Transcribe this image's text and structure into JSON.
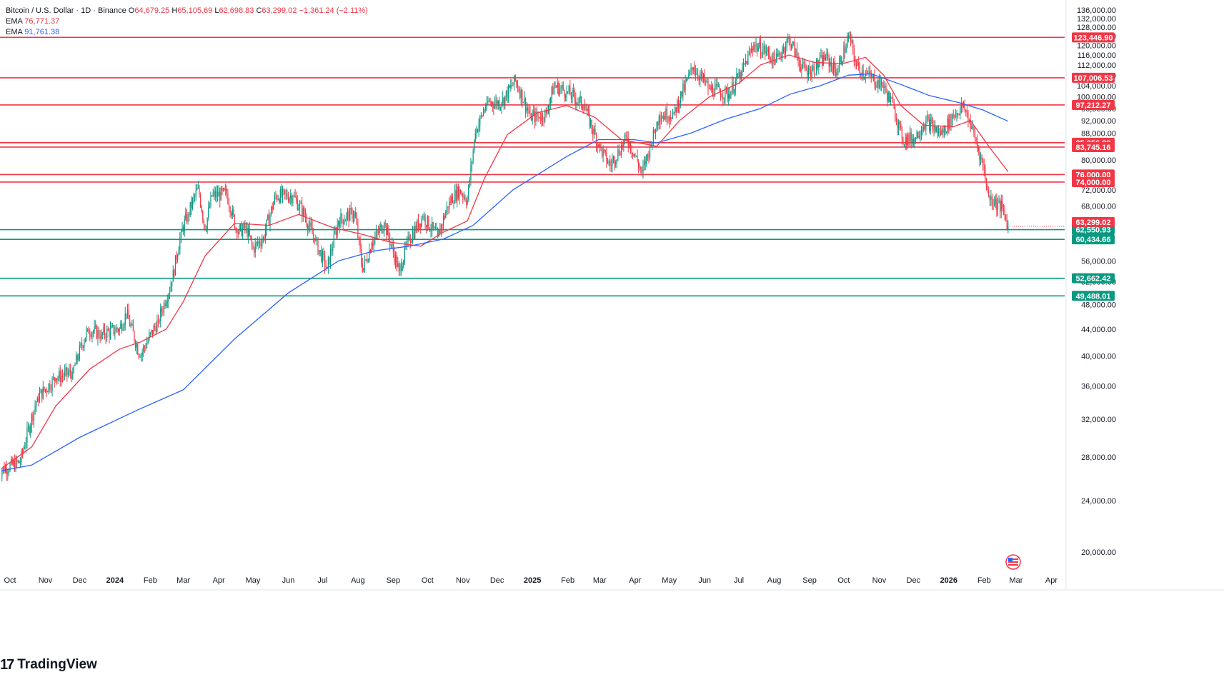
{
  "legend": {
    "symbol": "Bitcoin / U.S. Dollar · 1D · Binance",
    "open_label": "O",
    "open": "64,679.25",
    "high_label": "H",
    "high": "65,105.69",
    "low_label": "L",
    "low": "62,698.83",
    "close_label": "C",
    "close": "63,299.02",
    "change": "−1,361.24 (−2.11%)",
    "ema1_label": "EMA",
    "ema1_value": "76,771.37",
    "ema2_label": "EMA",
    "ema2_value": "91,761.38"
  },
  "brand": {
    "mark": "17",
    "name": "TradingView"
  },
  "colors": {
    "up": "#089981",
    "down": "#f23645",
    "ema_fast": "#f23645",
    "ema_slow": "#2962ff",
    "resistance": "#f23645",
    "support": "#089981",
    "grid": "#f0f3fa",
    "axis_text": "#131722"
  },
  "chart_data": {
    "type": "line",
    "title": "Bitcoin / U.S. Dollar · 1D · Binance",
    "y_scale": "log",
    "ylim": [
      17000,
      138000
    ],
    "y_ticks": [
      20000,
      24000,
      28000,
      32000,
      36000,
      40000,
      44000,
      48000,
      52000,
      56000,
      68000,
      72000,
      80000,
      88000,
      92000,
      96000,
      100000,
      104000,
      108000,
      112000,
      116000,
      120000,
      124000,
      128000,
      132000,
      136000
    ],
    "y_tick_labels": [
      "20,000.00",
      "24,000.00",
      "28,000.00",
      "32,000.00",
      "36,000.00",
      "40,000.00",
      "44,000.00",
      "48,000.00",
      "52,000.00",
      "56,000.00",
      "68,000.00",
      "72,000.00",
      "80,000.00",
      "88,000.00",
      "92,000.00",
      "96,000.00",
      "100,000.00",
      "104,000.00",
      "108,000.00",
      "112,000.00",
      "116,000.00",
      "120,000.00",
      "124,000.00",
      "128,000.00",
      "132,000.00",
      "136,000.00"
    ],
    "x_ticks": [
      {
        "label": "Oct",
        "date": "2023-10-01",
        "bold": false
      },
      {
        "label": "Nov",
        "date": "2023-11-01",
        "bold": false
      },
      {
        "label": "Dec",
        "date": "2023-12-01",
        "bold": false
      },
      {
        "label": "2024",
        "date": "2024-01-01",
        "bold": true
      },
      {
        "label": "Feb",
        "date": "2024-02-01",
        "bold": false
      },
      {
        "label": "Mar",
        "date": "2024-03-01",
        "bold": false
      },
      {
        "label": "Apr",
        "date": "2024-04-01",
        "bold": false
      },
      {
        "label": "May",
        "date": "2024-05-01",
        "bold": false
      },
      {
        "label": "Jun",
        "date": "2024-06-01",
        "bold": false
      },
      {
        "label": "Jul",
        "date": "2024-07-01",
        "bold": false
      },
      {
        "label": "Aug",
        "date": "2024-08-01",
        "bold": false
      },
      {
        "label": "Sep",
        "date": "2024-09-01",
        "bold": false
      },
      {
        "label": "Oct",
        "date": "2024-10-01",
        "bold": false
      },
      {
        "label": "Nov",
        "date": "2024-11-01",
        "bold": false
      },
      {
        "label": "Dec",
        "date": "2024-12-01",
        "bold": false
      },
      {
        "label": "2025",
        "date": "2025-01-01",
        "bold": true
      },
      {
        "label": "Feb",
        "date": "2025-02-01",
        "bold": false
      },
      {
        "label": "Mar",
        "date": "2025-03-01",
        "bold": false
      },
      {
        "label": "Apr",
        "date": "2025-04-01",
        "bold": false
      },
      {
        "label": "May",
        "date": "2025-05-01",
        "bold": false
      },
      {
        "label": "Jun",
        "date": "2025-06-01",
        "bold": false
      },
      {
        "label": "Jul",
        "date": "2025-07-01",
        "bold": false
      },
      {
        "label": "Aug",
        "date": "2025-08-01",
        "bold": false
      },
      {
        "label": "Sep",
        "date": "2025-09-01",
        "bold": false
      },
      {
        "label": "Oct",
        "date": "2025-10-01",
        "bold": false
      },
      {
        "label": "Nov",
        "date": "2025-11-01",
        "bold": false
      },
      {
        "label": "Dec",
        "date": "2025-12-01",
        "bold": false
      },
      {
        "label": "2026",
        "date": "2026-01-01",
        "bold": true
      },
      {
        "label": "Feb",
        "date": "2026-02-01",
        "bold": false
      },
      {
        "label": "Mar",
        "date": "2026-03-01",
        "bold": false
      },
      {
        "label": "Apr",
        "date": "2026-04-01",
        "bold": false
      }
    ],
    "price_series": {
      "dates": [
        "2023-09-20",
        "2023-10-10",
        "2023-10-25",
        "2023-11-10",
        "2023-11-25",
        "2023-12-08",
        "2023-12-20",
        "2024-01-05",
        "2024-01-11",
        "2024-01-23",
        "2024-02-08",
        "2024-02-20",
        "2024-02-28",
        "2024-03-05",
        "2024-03-14",
        "2024-03-20",
        "2024-03-26",
        "2024-04-08",
        "2024-04-17",
        "2024-04-25",
        "2024-05-01",
        "2024-05-10",
        "2024-05-21",
        "2024-06-05",
        "2024-06-15",
        "2024-06-24",
        "2024-07-05",
        "2024-07-15",
        "2024-07-29",
        "2024-08-05",
        "2024-08-13",
        "2024-08-24",
        "2024-09-06",
        "2024-09-15",
        "2024-09-27",
        "2024-10-10",
        "2024-10-20",
        "2024-10-29",
        "2024-11-05",
        "2024-11-12",
        "2024-11-22",
        "2024-12-05",
        "2024-12-17",
        "2024-12-30",
        "2025-01-07",
        "2025-01-13",
        "2025-01-20",
        "2025-01-31",
        "2025-02-15",
        "2025-02-28",
        "2025-03-10",
        "2025-03-25",
        "2025-04-07",
        "2025-04-15",
        "2025-04-22",
        "2025-05-05",
        "2025-05-22",
        "2025-06-05",
        "2025-06-22",
        "2025-07-03",
        "2025-07-14",
        "2025-07-25",
        "2025-08-02",
        "2025-08-14",
        "2025-08-25",
        "2025-09-01",
        "2025-09-15",
        "2025-09-25",
        "2025-10-06",
        "2025-10-11",
        "2025-10-20",
        "2025-11-04",
        "2025-11-14",
        "2025-11-21",
        "2025-12-02",
        "2025-12-12",
        "2025-12-25",
        "2026-01-05",
        "2026-01-14",
        "2026-01-21",
        "2026-01-31",
        "2026-02-05",
        "2026-02-10",
        "2026-02-17",
        "2026-02-22"
      ],
      "close": [
        26600,
        27500,
        34500,
        37000,
        37800,
        44000,
        43200,
        44100,
        46500,
        40000,
        45300,
        52000,
        62000,
        66000,
        72500,
        62500,
        70500,
        71000,
        62000,
        63000,
        58500,
        60800,
        70500,
        70500,
        66000,
        60200,
        54500,
        64500,
        66500,
        54000,
        59500,
        64000,
        54000,
        60500,
        65500,
        61000,
        69000,
        72000,
        69500,
        88000,
        98000,
        98000,
        106000,
        93500,
        93000,
        94500,
        104000,
        102000,
        97000,
        84000,
        78500,
        86500,
        76500,
        84500,
        93500,
        94500,
        111000,
        103000,
        101000,
        109000,
        120000,
        117500,
        113000,
        123000,
        111000,
        109000,
        115000,
        109000,
        124500,
        112000,
        108500,
        104000,
        96000,
        86000,
        86500,
        92000,
        87500,
        93500,
        97000,
        89800,
        78500,
        70500,
        69000,
        67500,
        63299
      ]
    },
    "series": [
      {
        "name": "EMA",
        "value": 76771.37,
        "color": "#f23645",
        "dates": [
          "2023-09-20",
          "2023-10-20",
          "2023-11-10",
          "2023-12-10",
          "2024-01-05",
          "2024-01-23",
          "2024-02-15",
          "2024-03-01",
          "2024-03-20",
          "2024-04-15",
          "2024-05-15",
          "2024-06-10",
          "2024-07-10",
          "2024-08-05",
          "2024-08-30",
          "2024-09-25",
          "2024-10-15",
          "2024-11-05",
          "2024-11-20",
          "2024-12-10",
          "2025-01-05",
          "2025-01-31",
          "2025-02-25",
          "2025-03-20",
          "2025-04-20",
          "2025-05-10",
          "2025-06-05",
          "2025-07-01",
          "2025-07-20",
          "2025-08-14",
          "2025-09-05",
          "2025-09-30",
          "2025-10-20",
          "2025-11-05",
          "2025-11-20",
          "2025-12-10",
          "2026-01-05",
          "2026-01-20",
          "2026-02-05",
          "2026-02-22"
        ],
        "values": [
          26600,
          29000,
          33500,
          38200,
          41000,
          42000,
          44000,
          48500,
          57000,
          64000,
          63500,
          66000,
          63000,
          61500,
          59800,
          59000,
          62000,
          64500,
          75000,
          87500,
          94500,
          97000,
          93000,
          86000,
          84000,
          92000,
          100000,
          105000,
          112000,
          116000,
          113000,
          112500,
          115000,
          108000,
          97000,
          90500,
          90000,
          92000,
          84000,
          76771
        ]
      },
      {
        "name": "EMA",
        "value": 91761.38,
        "color": "#2962ff",
        "dates": [
          "2023-09-20",
          "2023-10-20",
          "2023-12-01",
          "2024-01-20",
          "2024-03-01",
          "2024-04-15",
          "2024-06-01",
          "2024-07-15",
          "2024-08-15",
          "2024-09-15",
          "2024-10-15",
          "2024-11-10",
          "2024-12-15",
          "2025-01-31",
          "2025-02-28",
          "2025-03-31",
          "2025-04-20",
          "2025-05-20",
          "2025-06-20",
          "2025-07-20",
          "2025-08-15",
          "2025-09-10",
          "2025-10-05",
          "2025-10-25",
          "2025-11-20",
          "2025-12-15",
          "2026-01-10",
          "2026-01-31",
          "2026-02-22"
        ],
        "values": [
          26600,
          27200,
          30000,
          33000,
          35500,
          42500,
          50000,
          56000,
          58000,
          59000,
          60500,
          63500,
          72000,
          81000,
          86000,
          86000,
          85000,
          88000,
          92500,
          96000,
          101000,
          104000,
          108000,
          108500,
          104500,
          100500,
          98000,
          95500,
          91761
        ]
      }
    ],
    "horizontal_levels": [
      {
        "value": 123446.9,
        "label": "123,446.90",
        "kind": "resistance"
      },
      {
        "value": 107006.53,
        "label": "107,006.53",
        "kind": "resistance"
      },
      {
        "value": 97212.27,
        "label": "97,212.27",
        "kind": "resistance"
      },
      {
        "value": 85056.89,
        "label": "85,056.89",
        "kind": "resistance"
      },
      {
        "value": 83745.16,
        "label": "83,745.16",
        "kind": "resistance"
      },
      {
        "value": 76000.0,
        "label": "76,000.00",
        "kind": "resistance"
      },
      {
        "value": 74000.0,
        "label": "74,000.00",
        "kind": "resistance"
      },
      {
        "value": 62550.93,
        "label": "62,550.93",
        "kind": "support"
      },
      {
        "value": 60434.66,
        "label": "60,434.66",
        "kind": "support"
      },
      {
        "value": 52662.42,
        "label": "52,662.42",
        "kind": "support"
      },
      {
        "value": 49488.01,
        "label": "49,488.01",
        "kind": "support"
      }
    ],
    "last_price": {
      "value": 63299.02,
      "label": "63,299.02"
    },
    "grid": true,
    "legend_position": "top-left"
  }
}
